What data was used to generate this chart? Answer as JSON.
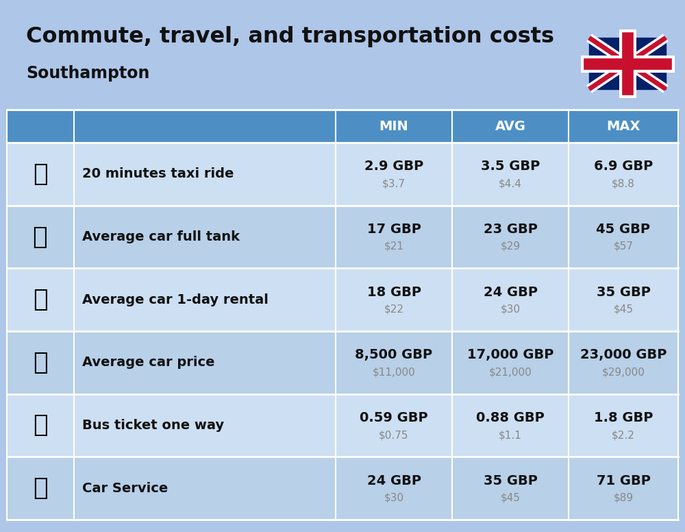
{
  "title": "Commute, travel, and transportation costs",
  "subtitle": "Southampton",
  "bg_color": "#aec6e8",
  "header_bg": "#4d8fc4",
  "header_text_color": "#ffffff",
  "row_bg_even": "#cddff2",
  "row_bg_odd": "#b8d0e8",
  "divider_color": "#ffffff",
  "header_labels": [
    "MIN",
    "AVG",
    "MAX"
  ],
  "rows": [
    {
      "label": "20 minutes taxi ride",
      "min_gbp": "2.9 GBP",
      "min_usd": "$3.7",
      "avg_gbp": "3.5 GBP",
      "avg_usd": "$4.4",
      "max_gbp": "6.9 GBP",
      "max_usd": "$8.8"
    },
    {
      "label": "Average car full tank",
      "min_gbp": "17 GBP",
      "min_usd": "$21",
      "avg_gbp": "23 GBP",
      "avg_usd": "$29",
      "max_gbp": "45 GBP",
      "max_usd": "$57"
    },
    {
      "label": "Average car 1-day rental",
      "min_gbp": "18 GBP",
      "min_usd": "$22",
      "avg_gbp": "24 GBP",
      "avg_usd": "$30",
      "max_gbp": "35 GBP",
      "max_usd": "$45"
    },
    {
      "label": "Average car price",
      "min_gbp": "8,500 GBP",
      "min_usd": "$11,000",
      "avg_gbp": "17,000 GBP",
      "avg_usd": "$21,000",
      "max_gbp": "23,000 GBP",
      "max_usd": "$29,000"
    },
    {
      "label": "Bus ticket one way",
      "min_gbp": "0.59 GBP",
      "min_usd": "$0.75",
      "avg_gbp": "0.88 GBP",
      "avg_usd": "$1.1",
      "max_gbp": "1.8 GBP",
      "max_usd": "$2.2"
    },
    {
      "label": "Car Service",
      "min_gbp": "24 GBP",
      "min_usd": "$30",
      "avg_gbp": "35 GBP",
      "avg_usd": "$45",
      "max_gbp": "71 GBP",
      "max_usd": "$89"
    }
  ],
  "title_fontsize": 23,
  "subtitle_fontsize": 17,
  "header_fontsize": 14,
  "cell_gbp_fontsize": 14,
  "cell_usd_fontsize": 11,
  "label_fontsize": 14,
  "icon_texts": [
    "🚕",
    "⛽️",
    "🚙",
    "🚗",
    "🚌",
    "🔧"
  ],
  "fig_width": 10.0,
  "fig_height": 7.76,
  "dpi": 100
}
